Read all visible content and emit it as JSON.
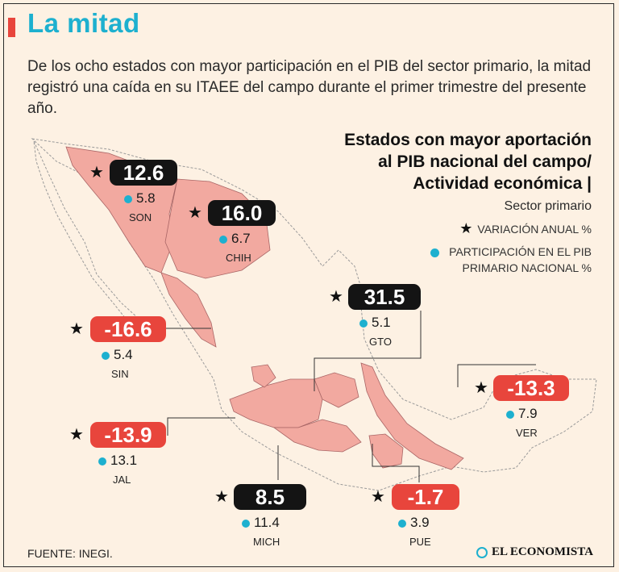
{
  "header": {
    "title": "La mitad",
    "subtitle": "De los ocho estados con mayor participación en el PIB del sector primario, la mitad registró una caída en su ITAEE del campo durante el primer trimestre del presente año."
  },
  "panel": {
    "title_line1": "Estados con mayor aportación",
    "title_line2": "al PIB nacional del campo/",
    "title_line3": "Actividad económica |",
    "sector": "Sector primario",
    "legend_star": "VARIACIÓN ANUAL %",
    "legend_dot_line1": "PARTICIPACIÓN EN EL PIB",
    "legend_dot_line2": "PRIMARIO NACIONAL %"
  },
  "states": {
    "son": {
      "abbr": "SON",
      "variation": "12.6",
      "share": "5.8"
    },
    "chih": {
      "abbr": "CHIH",
      "variation": "16.0",
      "share": "6.7"
    },
    "gto": {
      "abbr": "GTO",
      "variation": "31.5",
      "share": "5.1"
    },
    "sin": {
      "abbr": "SIN",
      "variation": "-16.6",
      "share": "5.4"
    },
    "ver": {
      "abbr": "VER",
      "variation": "-13.3",
      "share": "7.9"
    },
    "jal": {
      "abbr": "JAL",
      "variation": "-13.9",
      "share": "13.1"
    },
    "mich": {
      "abbr": "MICH",
      "variation": "8.5",
      "share": "11.4"
    },
    "pue": {
      "abbr": "PUE",
      "variation": "-1.7",
      "share": "3.9"
    }
  },
  "colors": {
    "accent": "#e8453c",
    "title": "#1db0cf",
    "highlight": "#f2a9a0",
    "positive": "#141414",
    "negative": "#e8453c"
  },
  "footer": {
    "source": "FUENTE:  INEGI.",
    "brand": "EL ECONOMISTA"
  }
}
